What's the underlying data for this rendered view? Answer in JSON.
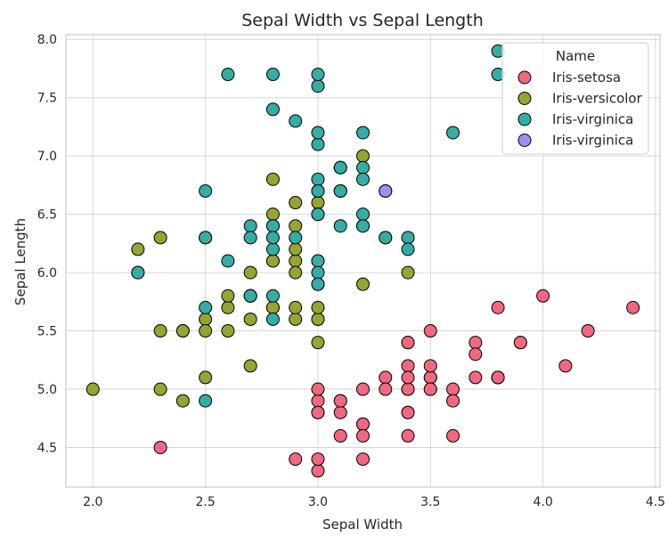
{
  "chart_data": {
    "type": "scatter",
    "title": "Sepal Width vs Sepal Length",
    "xlabel": "Sepal Width",
    "ylabel": "Sepal Length",
    "xlim": [
      1.88,
      4.52
    ],
    "ylim": [
      4.16,
      8.04
    ],
    "xticks": [
      2.0,
      2.5,
      3.0,
      3.5,
      4.0,
      4.5
    ],
    "xtick_labels": [
      "2.0",
      "2.5",
      "3.0",
      "3.5",
      "4.0",
      "4.5"
    ],
    "yticks": [
      4.5,
      5.0,
      5.5,
      6.0,
      6.5,
      7.0,
      7.5,
      8.0
    ],
    "ytick_labels": [
      "4.5",
      "5.0",
      "5.5",
      "6.0",
      "6.5",
      "7.0",
      "7.5",
      "8.0"
    ],
    "grid": true,
    "legend": {
      "title": "Name",
      "position": "top-right"
    },
    "series": [
      {
        "name": "Iris-setosa",
        "color": "#f0687f",
        "points": [
          [
            3.5,
            5.1
          ],
          [
            3.0,
            4.9
          ],
          [
            3.2,
            4.7
          ],
          [
            3.1,
            4.6
          ],
          [
            3.6,
            5.0
          ],
          [
            3.9,
            5.4
          ],
          [
            3.4,
            4.6
          ],
          [
            3.4,
            5.0
          ],
          [
            2.9,
            4.4
          ],
          [
            3.1,
            4.9
          ],
          [
            3.7,
            5.4
          ],
          [
            3.4,
            4.8
          ],
          [
            3.0,
            4.8
          ],
          [
            3.0,
            4.3
          ],
          [
            4.0,
            5.8
          ],
          [
            4.4,
            5.7
          ],
          [
            3.9,
            5.4
          ],
          [
            3.5,
            5.1
          ],
          [
            3.8,
            5.7
          ],
          [
            3.8,
            5.1
          ],
          [
            3.4,
            5.4
          ],
          [
            3.7,
            5.1
          ],
          [
            3.6,
            4.6
          ],
          [
            3.3,
            5.1
          ],
          [
            3.4,
            4.8
          ],
          [
            3.0,
            5.0
          ],
          [
            3.4,
            5.0
          ],
          [
            3.5,
            5.2
          ],
          [
            3.4,
            5.2
          ],
          [
            3.2,
            4.7
          ],
          [
            3.1,
            4.8
          ],
          [
            3.4,
            5.4
          ],
          [
            4.1,
            5.2
          ],
          [
            4.2,
            5.5
          ],
          [
            3.1,
            4.9
          ],
          [
            3.2,
            5.0
          ],
          [
            3.5,
            5.5
          ],
          [
            3.6,
            4.9
          ],
          [
            3.0,
            4.4
          ],
          [
            3.4,
            5.1
          ],
          [
            3.5,
            5.0
          ],
          [
            2.3,
            4.5
          ],
          [
            3.2,
            4.4
          ],
          [
            3.5,
            5.0
          ],
          [
            3.8,
            5.1
          ],
          [
            3.0,
            4.8
          ],
          [
            3.8,
            5.1
          ],
          [
            3.2,
            4.6
          ],
          [
            3.7,
            5.3
          ],
          [
            3.3,
            5.0
          ]
        ]
      },
      {
        "name": "Iris-versicolor",
        "color": "#97a431",
        "points": [
          [
            3.2,
            7.0
          ],
          [
            3.2,
            6.4
          ],
          [
            3.1,
            6.9
          ],
          [
            2.3,
            5.5
          ],
          [
            2.8,
            6.5
          ],
          [
            2.8,
            5.7
          ],
          [
            3.3,
            6.3
          ],
          [
            2.4,
            4.9
          ],
          [
            2.9,
            6.6
          ],
          [
            2.7,
            5.2
          ],
          [
            2.0,
            5.0
          ],
          [
            3.0,
            5.9
          ],
          [
            2.2,
            6.0
          ],
          [
            2.9,
            6.1
          ],
          [
            2.9,
            5.6
          ],
          [
            3.1,
            6.7
          ],
          [
            3.0,
            5.6
          ],
          [
            2.7,
            5.8
          ],
          [
            2.2,
            6.2
          ],
          [
            2.5,
            5.6
          ],
          [
            3.2,
            5.9
          ],
          [
            2.8,
            6.1
          ],
          [
            2.5,
            6.3
          ],
          [
            2.8,
            6.1
          ],
          [
            2.9,
            6.4
          ],
          [
            3.0,
            6.6
          ],
          [
            2.8,
            6.8
          ],
          [
            3.0,
            6.7
          ],
          [
            2.9,
            6.0
          ],
          [
            2.6,
            5.7
          ],
          [
            2.4,
            5.5
          ],
          [
            2.4,
            5.5
          ],
          [
            2.7,
            5.8
          ],
          [
            2.7,
            6.0
          ],
          [
            3.0,
            5.4
          ],
          [
            3.4,
            6.0
          ],
          [
            3.1,
            6.7
          ],
          [
            2.3,
            6.3
          ],
          [
            3.0,
            5.6
          ],
          [
            2.5,
            5.5
          ],
          [
            2.6,
            5.5
          ],
          [
            3.0,
            6.1
          ],
          [
            2.6,
            5.8
          ],
          [
            2.3,
            5.0
          ],
          [
            2.7,
            5.6
          ],
          [
            3.0,
            5.7
          ],
          [
            2.9,
            5.7
          ],
          [
            2.9,
            6.2
          ],
          [
            2.5,
            5.1
          ],
          [
            2.8,
            5.7
          ]
        ]
      },
      {
        "name": "Iris-virginica",
        "color": "#36ada4",
        "points": [
          [
            3.3,
            6.3
          ],
          [
            2.7,
            5.8
          ],
          [
            3.0,
            7.1
          ],
          [
            2.9,
            6.3
          ],
          [
            3.0,
            6.5
          ],
          [
            3.0,
            7.6
          ],
          [
            2.5,
            4.9
          ],
          [
            2.9,
            7.3
          ],
          [
            2.5,
            6.7
          ],
          [
            3.6,
            7.2
          ],
          [
            3.2,
            6.5
          ],
          [
            2.7,
            6.4
          ],
          [
            3.0,
            6.8
          ],
          [
            2.5,
            5.7
          ],
          [
            2.8,
            5.8
          ],
          [
            3.2,
            6.4
          ],
          [
            3.0,
            6.5
          ],
          [
            3.8,
            7.7
          ],
          [
            2.6,
            7.7
          ],
          [
            2.2,
            6.0
          ],
          [
            3.2,
            6.9
          ],
          [
            2.8,
            5.6
          ],
          [
            2.8,
            7.7
          ],
          [
            2.7,
            6.3
          ],
          [
            3.3,
            6.7
          ],
          [
            3.2,
            7.2
          ],
          [
            2.8,
            6.2
          ],
          [
            3.0,
            6.1
          ],
          [
            2.8,
            6.4
          ],
          [
            3.0,
            7.2
          ],
          [
            2.8,
            7.4
          ],
          [
            3.8,
            7.9
          ],
          [
            2.8,
            6.4
          ],
          [
            2.8,
            6.3
          ],
          [
            2.6,
            6.1
          ],
          [
            3.0,
            7.7
          ],
          [
            3.4,
            6.3
          ],
          [
            3.1,
            6.4
          ],
          [
            3.0,
            6.0
          ],
          [
            3.1,
            6.9
          ],
          [
            3.1,
            6.7
          ],
          [
            3.1,
            6.9
          ],
          [
            2.7,
            5.8
          ],
          [
            3.2,
            6.8
          ],
          [
            3.0,
            6.7
          ],
          [
            2.5,
            6.3
          ],
          [
            3.0,
            6.5
          ],
          [
            3.4,
            6.2
          ],
          [
            3.0,
            5.9
          ]
        ]
      },
      {
        "name": "Iris-virginica",
        "color": "#a48cf4",
        "points": [
          [
            3.3,
            6.7
          ]
        ]
      }
    ]
  }
}
